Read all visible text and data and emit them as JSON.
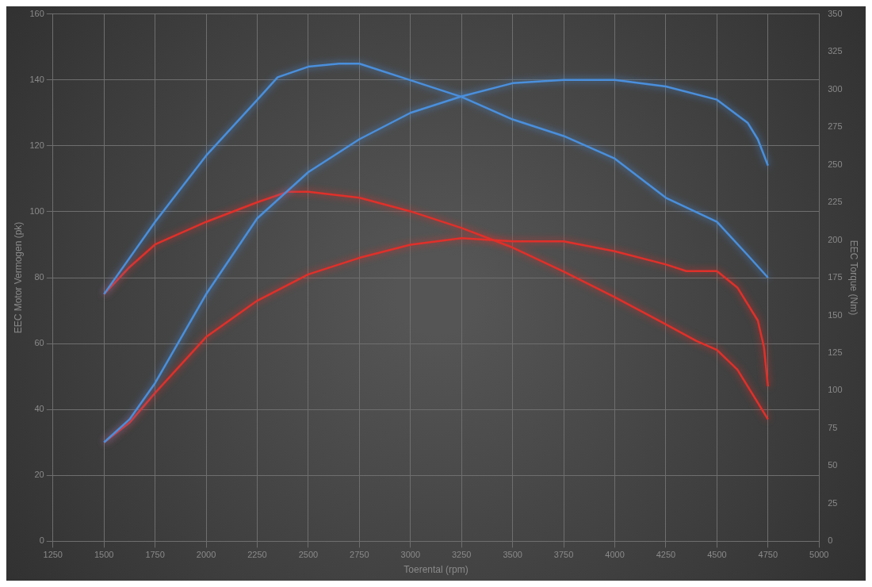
{
  "chart_data": {
    "type": "line",
    "xlabel": "Toerental (rpm)",
    "ylabel": "EEC Motor Vermogen (pk)",
    "y2label": "EEC Torque (Nm)",
    "xlim": [
      1250,
      5000
    ],
    "xticks": [
      1250,
      1500,
      1750,
      2000,
      2250,
      2500,
      2750,
      3000,
      3250,
      3500,
      3750,
      4000,
      4250,
      4500,
      4750,
      5000
    ],
    "ylim": [
      0,
      160
    ],
    "yticks": [
      0,
      20,
      40,
      60,
      80,
      100,
      120,
      140,
      160
    ],
    "y2lim": [
      0,
      350
    ],
    "y2ticks": [
      0,
      25,
      50,
      75,
      100,
      125,
      150,
      175,
      200,
      225,
      250,
      275,
      300,
      325,
      350
    ],
    "grid": true,
    "legend": false,
    "marker": "none",
    "line_style": "solid",
    "series": [
      {
        "color": "#4a8fdc",
        "axis": "y",
        "x": [
          1500,
          1625,
          1750,
          2000,
          2250,
          2500,
          2750,
          3000,
          3250,
          3500,
          3750,
          4000,
          4250,
          4500,
          4650,
          4700,
          4750
        ],
        "values": [
          30,
          37,
          48,
          75,
          98,
          112,
          122,
          130,
          135,
          139,
          140,
          140,
          138,
          134,
          127,
          122,
          114
        ]
      },
      {
        "color": "#e0302a",
        "axis": "y",
        "x": [
          1500,
          1625,
          1750,
          2000,
          2250,
          2500,
          2750,
          3000,
          3250,
          3500,
          3750,
          4000,
          4250,
          4350,
          4500,
          4600,
          4700,
          4730,
          4750
        ],
        "values": [
          30,
          36,
          45,
          62,
          73,
          81,
          86,
          90,
          92,
          91,
          91,
          88,
          84,
          82,
          82,
          77,
          67,
          59,
          47
        ]
      },
      {
        "color": "#4a8fdc",
        "axis": "y2",
        "x": [
          1500,
          1750,
          2000,
          2250,
          2350,
          2500,
          2650,
          2750,
          3000,
          3250,
          3500,
          3750,
          4000,
          4250,
          4500,
          4650,
          4750
        ],
        "values": [
          164,
          212,
          256,
          293,
          308,
          315,
          317,
          317,
          306,
          295,
          280,
          269,
          254,
          228,
          212,
          190,
          175
        ]
      },
      {
        "color": "#e0302a",
        "axis": "y2",
        "x": [
          1500,
          1625,
          1750,
          2000,
          2250,
          2400,
          2500,
          2750,
          3000,
          3250,
          3500,
          3750,
          4000,
          4250,
          4400,
          4500,
          4600,
          4750
        ],
        "values": [
          164,
          182,
          197,
          212,
          225,
          232,
          232,
          228,
          219,
          208,
          195,
          179,
          162,
          144,
          133,
          127,
          114,
          81
        ]
      }
    ]
  }
}
